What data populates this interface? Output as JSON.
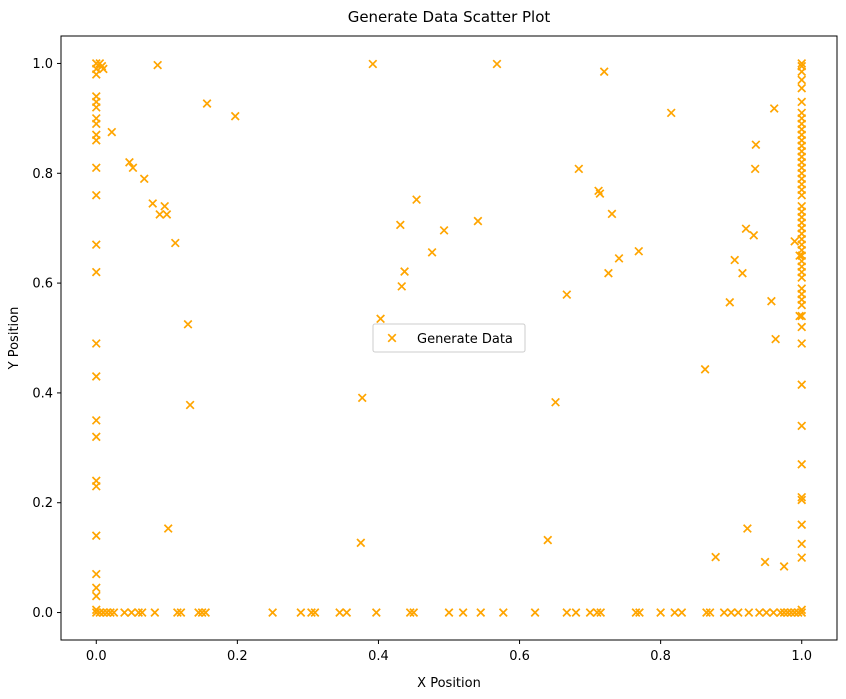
{
  "chart_data": {
    "type": "scatter",
    "title": "Generate Data Scatter Plot",
    "xlabel": "X Position",
    "ylabel": "Y Position",
    "xlim": [
      -0.05,
      1.05
    ],
    "ylim": [
      -0.05,
      1.05
    ],
    "x_ticks": [
      "0.0",
      "0.2",
      "0.4",
      "0.6",
      "0.8",
      "1.0"
    ],
    "y_ticks": [
      "0.0",
      "0.2",
      "0.4",
      "0.6",
      "0.8",
      "1.0"
    ],
    "grid": false,
    "legend_position": "center",
    "marker": "x",
    "color": "#ffa500",
    "series": [
      {
        "name": "Generate Data",
        "points": [
          [
            0.0,
            1.0
          ],
          [
            0.0,
            0.99
          ],
          [
            0.0,
            0.98
          ],
          [
            0.005,
            1.0
          ],
          [
            0.008,
            0.995
          ],
          [
            0.01,
            0.99
          ],
          [
            0.0,
            0.94
          ],
          [
            0.0,
            0.93
          ],
          [
            0.0,
            0.92
          ],
          [
            0.0,
            0.9
          ],
          [
            0.0,
            0.89
          ],
          [
            0.0,
            0.87
          ],
          [
            0.0,
            0.86
          ],
          [
            0.0,
            0.81
          ],
          [
            0.0,
            0.76
          ],
          [
            0.0,
            0.67
          ],
          [
            0.0,
            0.62
          ],
          [
            0.0,
            0.49
          ],
          [
            0.0,
            0.43
          ],
          [
            0.0,
            0.35
          ],
          [
            0.0,
            0.32
          ],
          [
            0.0,
            0.24
          ],
          [
            0.0,
            0.23
          ],
          [
            0.0,
            0.14
          ],
          [
            0.0,
            0.07
          ],
          [
            0.0,
            0.045
          ],
          [
            0.0,
            0.03
          ],
          [
            0.0,
            0.005
          ],
          [
            0.022,
            0.875
          ],
          [
            0.087,
            0.997
          ],
          [
            0.157,
            0.927
          ],
          [
            0.197,
            0.904
          ],
          [
            0.047,
            0.82
          ],
          [
            0.052,
            0.81
          ],
          [
            0.068,
            0.79
          ],
          [
            0.08,
            0.745
          ],
          [
            0.09,
            0.725
          ],
          [
            0.097,
            0.74
          ],
          [
            0.1,
            0.725
          ],
          [
            0.112,
            0.673
          ],
          [
            0.13,
            0.525
          ],
          [
            0.133,
            0.378
          ],
          [
            0.102,
            0.153
          ],
          [
            0.392,
            0.999
          ],
          [
            0.568,
            0.999
          ],
          [
            0.72,
            0.985
          ],
          [
            0.815,
            0.91
          ],
          [
            0.961,
            0.918
          ],
          [
            0.935,
            0.852
          ],
          [
            0.934,
            0.808
          ],
          [
            0.684,
            0.808
          ],
          [
            0.712,
            0.768
          ],
          [
            0.714,
            0.763
          ],
          [
            0.731,
            0.726
          ],
          [
            0.454,
            0.752
          ],
          [
            0.541,
            0.713
          ],
          [
            0.431,
            0.706
          ],
          [
            0.493,
            0.696
          ],
          [
            0.921,
            0.699
          ],
          [
            0.932,
            0.687
          ],
          [
            0.769,
            0.658
          ],
          [
            0.476,
            0.656
          ],
          [
            0.741,
            0.645
          ],
          [
            0.905,
            0.642
          ],
          [
            0.437,
            0.621
          ],
          [
            0.726,
            0.618
          ],
          [
            0.916,
            0.618
          ],
          [
            0.433,
            0.594
          ],
          [
            0.667,
            0.579
          ],
          [
            0.898,
            0.565
          ],
          [
            0.957,
            0.567
          ],
          [
            0.403,
            0.535
          ],
          [
            0.963,
            0.498
          ],
          [
            0.863,
            0.443
          ],
          [
            0.377,
            0.391
          ],
          [
            0.651,
            0.383
          ],
          [
            0.375,
            0.127
          ],
          [
            0.64,
            0.132
          ],
          [
            0.923,
            0.153
          ],
          [
            0.878,
            0.101
          ],
          [
            0.948,
            0.092
          ],
          [
            0.975,
            0.084
          ],
          [
            0.99,
            0.676
          ],
          [
            1.0,
            1.0
          ],
          [
            1.0,
            0.995
          ],
          [
            1.0,
            0.985
          ],
          [
            1.0,
            0.97
          ],
          [
            1.0,
            0.955
          ],
          [
            1.0,
            0.93
          ],
          [
            1.0,
            0.91
          ],
          [
            1.0,
            0.9
          ],
          [
            1.0,
            0.89
          ],
          [
            1.0,
            0.88
          ],
          [
            1.0,
            0.87
          ],
          [
            1.0,
            0.86
          ],
          [
            1.0,
            0.85
          ],
          [
            1.0,
            0.84
          ],
          [
            1.0,
            0.83
          ],
          [
            1.0,
            0.82
          ],
          [
            1.0,
            0.81
          ],
          [
            1.0,
            0.8
          ],
          [
            1.0,
            0.79
          ],
          [
            1.0,
            0.78
          ],
          [
            1.0,
            0.77
          ],
          [
            1.0,
            0.76
          ],
          [
            1.0,
            0.74
          ],
          [
            1.0,
            0.73
          ],
          [
            1.0,
            0.72
          ],
          [
            1.0,
            0.71
          ],
          [
            1.0,
            0.7
          ],
          [
            1.0,
            0.69
          ],
          [
            1.0,
            0.68
          ],
          [
            1.0,
            0.67
          ],
          [
            1.0,
            0.66
          ],
          [
            1.0,
            0.65
          ],
          [
            1.0,
            0.64
          ],
          [
            1.0,
            0.63
          ],
          [
            1.0,
            0.62
          ],
          [
            1.0,
            0.61
          ],
          [
            1.0,
            0.59
          ],
          [
            1.0,
            0.58
          ],
          [
            1.0,
            0.57
          ],
          [
            1.0,
            0.56
          ],
          [
            1.0,
            0.54
          ],
          [
            1.0,
            0.52
          ],
          [
            1.0,
            0.49
          ],
          [
            1.0,
            0.415
          ],
          [
            1.0,
            0.34
          ],
          [
            1.0,
            0.27
          ],
          [
            1.0,
            0.21
          ],
          [
            1.0,
            0.205
          ],
          [
            1.0,
            0.16
          ],
          [
            1.0,
            0.125
          ],
          [
            1.0,
            0.1
          ],
          [
            1.0,
            0.005
          ],
          [
            0.997,
            0.65
          ],
          [
            0.997,
            0.54
          ],
          [
            0.0,
            0.0
          ],
          [
            0.005,
            0.0
          ],
          [
            0.01,
            0.0
          ],
          [
            0.015,
            0.0
          ],
          [
            0.02,
            0.0
          ],
          [
            0.025,
            0.0
          ],
          [
            0.04,
            0.0
          ],
          [
            0.05,
            0.0
          ],
          [
            0.06,
            0.0
          ],
          [
            0.065,
            0.0
          ],
          [
            0.083,
            0.0
          ],
          [
            0.115,
            0.0
          ],
          [
            0.12,
            0.0
          ],
          [
            0.145,
            0.0
          ],
          [
            0.15,
            0.0
          ],
          [
            0.155,
            0.0
          ],
          [
            0.25,
            0.0
          ],
          [
            0.29,
            0.0
          ],
          [
            0.305,
            0.0
          ],
          [
            0.31,
            0.0
          ],
          [
            0.345,
            0.0
          ],
          [
            0.355,
            0.0
          ],
          [
            0.397,
            0.0
          ],
          [
            0.445,
            0.0
          ],
          [
            0.45,
            0.0
          ],
          [
            0.5,
            0.0
          ],
          [
            0.52,
            0.0
          ],
          [
            0.545,
            0.0
          ],
          [
            0.577,
            0.0
          ],
          [
            0.622,
            0.0
          ],
          [
            0.667,
            0.0
          ],
          [
            0.68,
            0.0
          ],
          [
            0.7,
            0.0
          ],
          [
            0.71,
            0.0
          ],
          [
            0.715,
            0.0
          ],
          [
            0.765,
            0.0
          ],
          [
            0.77,
            0.0
          ],
          [
            0.8,
            0.0
          ],
          [
            0.82,
            0.0
          ],
          [
            0.83,
            0.0
          ],
          [
            0.865,
            0.0
          ],
          [
            0.87,
            0.0
          ],
          [
            0.89,
            0.0
          ],
          [
            0.9,
            0.0
          ],
          [
            0.91,
            0.0
          ],
          [
            0.925,
            0.0
          ],
          [
            0.94,
            0.0
          ],
          [
            0.95,
            0.0
          ],
          [
            0.96,
            0.0
          ],
          [
            0.97,
            0.0
          ],
          [
            0.975,
            0.0
          ],
          [
            0.98,
            0.0
          ],
          [
            0.985,
            0.0
          ],
          [
            0.99,
            0.0
          ],
          [
            0.995,
            0.0
          ],
          [
            1.0,
            0.0
          ]
        ]
      }
    ]
  }
}
